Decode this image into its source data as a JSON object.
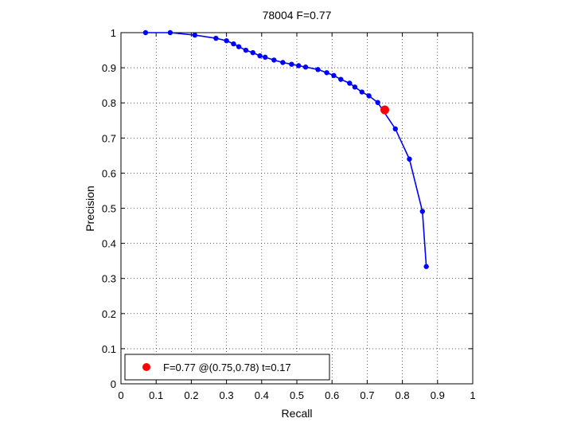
{
  "chart_data": {
    "type": "line",
    "title": "78004 F=0.77",
    "xlabel": "Recall",
    "ylabel": "Precision",
    "xlim": [
      0,
      1
    ],
    "ylim": [
      0,
      1
    ],
    "xticks": [
      "0",
      "0.1",
      "0.2",
      "0.3",
      "0.4",
      "0.5",
      "0.6",
      "0.7",
      "0.8",
      "0.9",
      "1"
    ],
    "yticks": [
      "0",
      "0.1",
      "0.2",
      "0.3",
      "0.4",
      "0.5",
      "0.6",
      "0.7",
      "0.8",
      "0.9",
      "1"
    ],
    "grid": true,
    "series": [
      {
        "color": "#0000ff",
        "points": [
          [
            0.07,
            1.0
          ],
          [
            0.14,
            1.0
          ],
          [
            0.21,
            0.993
          ],
          [
            0.27,
            0.984
          ],
          [
            0.3,
            0.977
          ],
          [
            0.32,
            0.968
          ],
          [
            0.335,
            0.96
          ],
          [
            0.355,
            0.95
          ],
          [
            0.375,
            0.943
          ],
          [
            0.395,
            0.934
          ],
          [
            0.41,
            0.93
          ],
          [
            0.435,
            0.922
          ],
          [
            0.46,
            0.915
          ],
          [
            0.485,
            0.91
          ],
          [
            0.505,
            0.906
          ],
          [
            0.525,
            0.902
          ],
          [
            0.56,
            0.895
          ],
          [
            0.585,
            0.886
          ],
          [
            0.605,
            0.878
          ],
          [
            0.625,
            0.867
          ],
          [
            0.65,
            0.856
          ],
          [
            0.665,
            0.845
          ],
          [
            0.685,
            0.831
          ],
          [
            0.705,
            0.82
          ],
          [
            0.73,
            0.801
          ],
          [
            0.78,
            0.726
          ],
          [
            0.82,
            0.64
          ],
          [
            0.857,
            0.491
          ],
          [
            0.868,
            0.334
          ]
        ]
      }
    ],
    "highlight": {
      "x": 0.75,
      "y": 0.78,
      "color": "#ff0000"
    },
    "legend": {
      "text": "F=0.77 @(0.75,0.78) t=0.17",
      "position": "bottom-left"
    }
  }
}
